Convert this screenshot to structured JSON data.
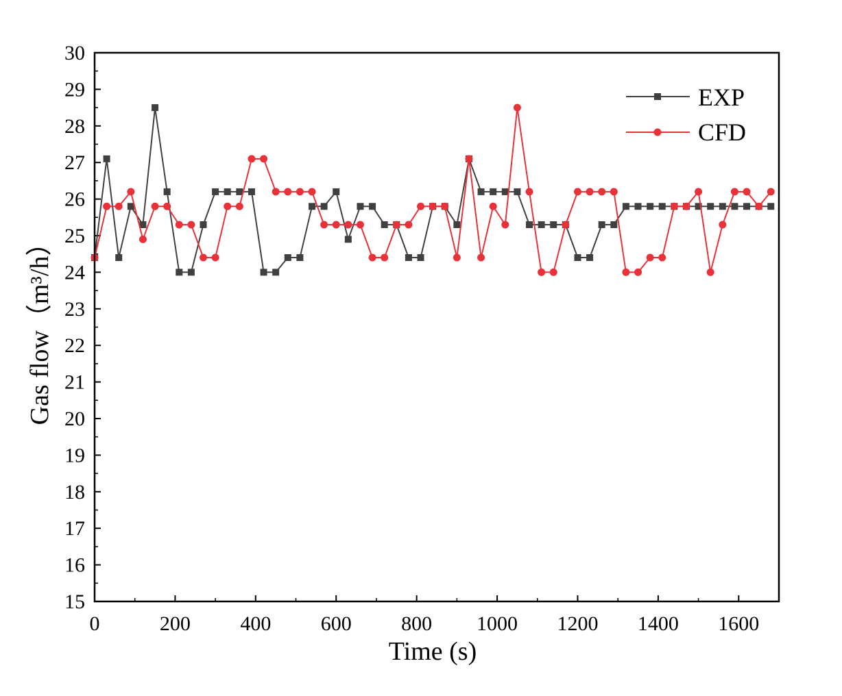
{
  "chart_data": {
    "type": "line",
    "title": "",
    "xlabel": "Time (s)",
    "ylabel": "Gas flow（m³/h）",
    "xlim": [
      0,
      1700
    ],
    "ylim": [
      15,
      30
    ],
    "x_ticks": [
      0,
      200,
      400,
      600,
      800,
      1000,
      1200,
      1400,
      1600
    ],
    "y_ticks": [
      15,
      16,
      17,
      18,
      19,
      20,
      21,
      22,
      23,
      24,
      25,
      26,
      27,
      28,
      29,
      30
    ],
    "legend_position": "top-right",
    "series": [
      {
        "name": "EXP",
        "color": "#404040",
        "marker": "square",
        "x": [
          0,
          30,
          60,
          90,
          120,
          150,
          180,
          210,
          240,
          270,
          300,
          330,
          360,
          390,
          420,
          450,
          480,
          510,
          540,
          570,
          600,
          630,
          660,
          690,
          720,
          750,
          780,
          810,
          840,
          870,
          900,
          930,
          960,
          990,
          1020,
          1050,
          1080,
          1110,
          1140,
          1170,
          1200,
          1230,
          1260,
          1290,
          1320,
          1350,
          1380,
          1410,
          1440,
          1470,
          1500,
          1530,
          1560,
          1590,
          1620,
          1650,
          1680
        ],
        "values": [
          24.4,
          27.1,
          24.4,
          25.8,
          25.3,
          28.5,
          26.2,
          24.0,
          24.0,
          25.3,
          26.2,
          26.2,
          26.2,
          26.2,
          24.0,
          24.0,
          24.4,
          24.4,
          25.8,
          25.8,
          26.2,
          24.9,
          25.8,
          25.8,
          25.3,
          25.3,
          24.4,
          24.4,
          25.8,
          25.8,
          25.3,
          27.1,
          26.2,
          26.2,
          26.2,
          26.2,
          25.3,
          25.3,
          25.3,
          25.3,
          24.4,
          24.4,
          25.3,
          25.3,
          25.8,
          25.8,
          25.8,
          25.8,
          25.8,
          25.8,
          25.8,
          25.8,
          25.8,
          25.8,
          25.8,
          25.8,
          25.8
        ]
      },
      {
        "name": "CFD",
        "color": "#e8323a",
        "marker": "circle",
        "x": [
          0,
          30,
          60,
          90,
          120,
          150,
          180,
          210,
          240,
          270,
          300,
          330,
          360,
          390,
          420,
          450,
          480,
          510,
          540,
          570,
          600,
          630,
          660,
          690,
          720,
          750,
          780,
          810,
          840,
          870,
          900,
          930,
          960,
          990,
          1020,
          1050,
          1080,
          1110,
          1140,
          1170,
          1200,
          1230,
          1260,
          1290,
          1320,
          1350,
          1380,
          1410,
          1440,
          1470,
          1500,
          1530,
          1560,
          1590,
          1620,
          1650,
          1680
        ],
        "values": [
          24.4,
          25.8,
          25.8,
          26.2,
          24.9,
          25.8,
          25.8,
          25.3,
          25.3,
          24.4,
          24.4,
          25.8,
          25.8,
          27.1,
          27.1,
          26.2,
          26.2,
          26.2,
          26.2,
          25.3,
          25.3,
          25.3,
          25.3,
          24.4,
          24.4,
          25.3,
          25.3,
          25.8,
          25.8,
          25.8,
          24.4,
          27.1,
          24.4,
          25.8,
          25.3,
          28.5,
          26.2,
          24.0,
          24.0,
          25.3,
          26.2,
          26.2,
          26.2,
          26.2,
          24.0,
          24.0,
          24.4,
          24.4,
          25.8,
          25.8,
          26.2,
          24.0,
          25.3,
          26.2,
          26.2,
          25.8,
          26.2
        ]
      }
    ]
  }
}
